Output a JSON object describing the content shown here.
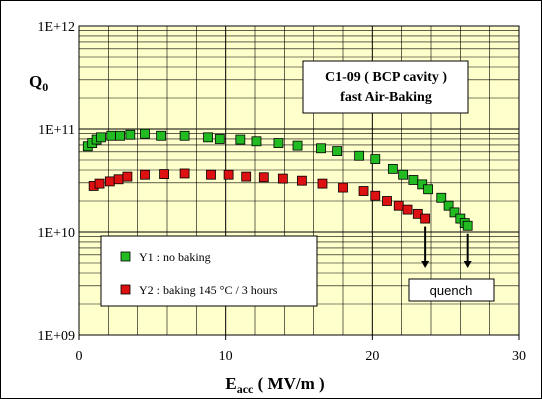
{
  "chart_data": {
    "type": "scatter",
    "title_box": {
      "line1": "C1-09 ( BCP cavity )",
      "line2": "fast Air-Baking"
    },
    "xlabel": {
      "main": "E",
      "sub": "acc",
      "unit": " ( MV/m )"
    },
    "ylabel": {
      "main": "Q",
      "sub": "0"
    },
    "xlim": [
      0,
      30
    ],
    "ylim": [
      1000000000.0,
      1000000000000.0
    ],
    "y_scale": "log",
    "x_ticks": [
      "0",
      "10",
      "20",
      "30"
    ],
    "x_tick_values": [
      0,
      10,
      20,
      30
    ],
    "y_ticks": [
      "1E+09",
      "1E+10",
      "1E+11",
      "1E+12"
    ],
    "y_tick_values": [
      1000000000.0,
      10000000000.0,
      100000000000.0,
      1000000000000.0
    ],
    "grid": true,
    "plot_background": "#ffffcc",
    "legend_placement": "lower-left",
    "series": [
      {
        "name": "Y1 : no baking",
        "color": "#22bb22",
        "points": [
          [
            0.6,
            68000000000.0
          ],
          [
            0.9,
            73000000000.0
          ],
          [
            1.2,
            79000000000.0
          ],
          [
            1.5,
            83000000000.0
          ],
          [
            2.2,
            86000000000.0
          ],
          [
            2.8,
            86000000000.0
          ],
          [
            3.5,
            88000000000.0
          ],
          [
            4.5,
            90000000000.0
          ],
          [
            5.6,
            86000000000.0
          ],
          [
            7.2,
            86000000000.0
          ],
          [
            8.8,
            83000000000.0
          ],
          [
            9.6,
            80000000000.0
          ],
          [
            11.0,
            79000000000.0
          ],
          [
            12.1,
            76000000000.0
          ],
          [
            13.6,
            73000000000.0
          ],
          [
            14.9,
            69000000000.0
          ],
          [
            16.5,
            65000000000.0
          ],
          [
            17.6,
            61000000000.0
          ],
          [
            19.1,
            55000000000.0
          ],
          [
            20.2,
            51000000000.0
          ],
          [
            21.4,
            41000000000.0
          ],
          [
            22.1,
            36000000000.0
          ],
          [
            22.8,
            32000000000.0
          ],
          [
            23.4,
            29000000000.0
          ],
          [
            23.8,
            26000000000.0
          ],
          [
            24.7,
            21500000000.0
          ],
          [
            25.2,
            18000000000.0
          ],
          [
            25.6,
            15500000000.0
          ],
          [
            26.0,
            13500000000.0
          ],
          [
            26.3,
            12200000000.0
          ],
          [
            26.5,
            11500000000.0
          ]
        ]
      },
      {
        "name": "Y2 : baking 145 °C / 3 hours",
        "color": "#dd1111",
        "points": [
          [
            1.0,
            28000000000.0
          ],
          [
            1.4,
            29500000000.0
          ],
          [
            2.1,
            31000000000.0
          ],
          [
            2.7,
            32500000000.0
          ],
          [
            3.3,
            34500000000.0
          ],
          [
            4.5,
            36000000000.0
          ],
          [
            5.8,
            36500000000.0
          ],
          [
            7.2,
            37000000000.0
          ],
          [
            9.0,
            36000000000.0
          ],
          [
            10.2,
            36000000000.0
          ],
          [
            11.4,
            34500000000.0
          ],
          [
            12.6,
            34000000000.0
          ],
          [
            13.9,
            33000000000.0
          ],
          [
            15.2,
            31500000000.0
          ],
          [
            16.6,
            29500000000.0
          ],
          [
            18.0,
            27000000000.0
          ],
          [
            19.4,
            25000000000.0
          ],
          [
            20.2,
            22500000000.0
          ],
          [
            21.0,
            20000000000.0
          ],
          [
            21.8,
            18000000000.0
          ],
          [
            22.4,
            16500000000.0
          ],
          [
            23.1,
            15000000000.0
          ],
          [
            23.6,
            13500000000.0
          ]
        ]
      }
    ],
    "annotations": {
      "quench_label": "quench",
      "quench_arrows_x": [
        23.6,
        26.5
      ]
    }
  }
}
